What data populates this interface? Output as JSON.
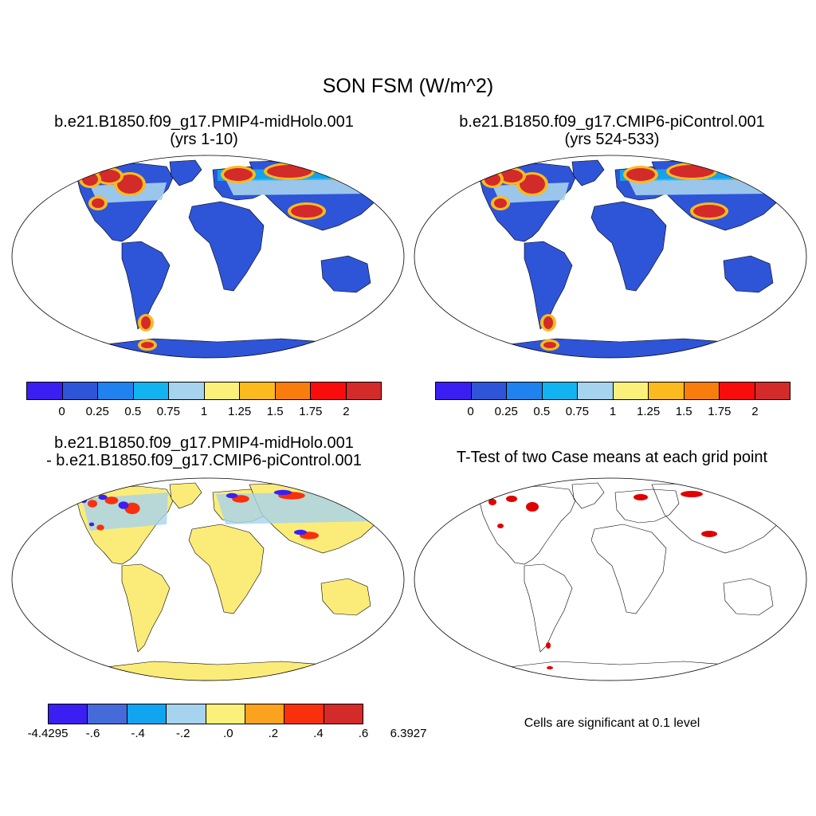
{
  "title": "SON FSM (W/m^2)",
  "panels": [
    {
      "title_line1": "b.e21.B1850.f09_g17.PMIP4-midHolo.001",
      "title_line2": "(yrs 1-10)"
    },
    {
      "title_line1": "b.e21.B1850.f09_g17.CMIP6-piControl.001",
      "title_line2": "(yrs 524-533)"
    },
    {
      "title_line1": "b.e21.B1850.f09_g17.PMIP4-midHolo.001",
      "title_line2": "- b.e21.B1850.f09_g17.CMIP6-piControl.001"
    },
    {
      "title_line1": "T-Test of two Case means at each grid point",
      "note": "Cells are significant at 0.1 level"
    }
  ],
  "colorbar_abs": {
    "colors": [
      "#3b1ff2",
      "#2e54d8",
      "#1f82ee",
      "#11b4f0",
      "#a6d3ee",
      "#fbf17a",
      "#fbba1e",
      "#f97d0c",
      "#f90d0c",
      "#d32a2a"
    ],
    "labels": [
      "0",
      "0.25",
      "0.5",
      "0.75",
      "1",
      "1.25",
      "1.5",
      "1.75",
      "2"
    ]
  },
  "colorbar_diff": {
    "colors": [
      "#3b1ff2",
      "#456ad9",
      "#11a4f0",
      "#a6d3ee",
      "#fbf17a",
      "#fba21e",
      "#f9300c",
      "#d32a2a"
    ],
    "labels": [
      "-4.4295",
      "-.6",
      "-.4",
      "-.2",
      ".0",
      ".2",
      ".4",
      ".6",
      "6.3927"
    ]
  },
  "colors": {
    "land_low": "#2e54d8",
    "land_diff": "#fbec7a",
    "signif": "#e00000",
    "hot": "#d32a2a",
    "orange": "#fbba1e",
    "light": "#a6d3ee",
    "cyan": "#11b4f0"
  }
}
